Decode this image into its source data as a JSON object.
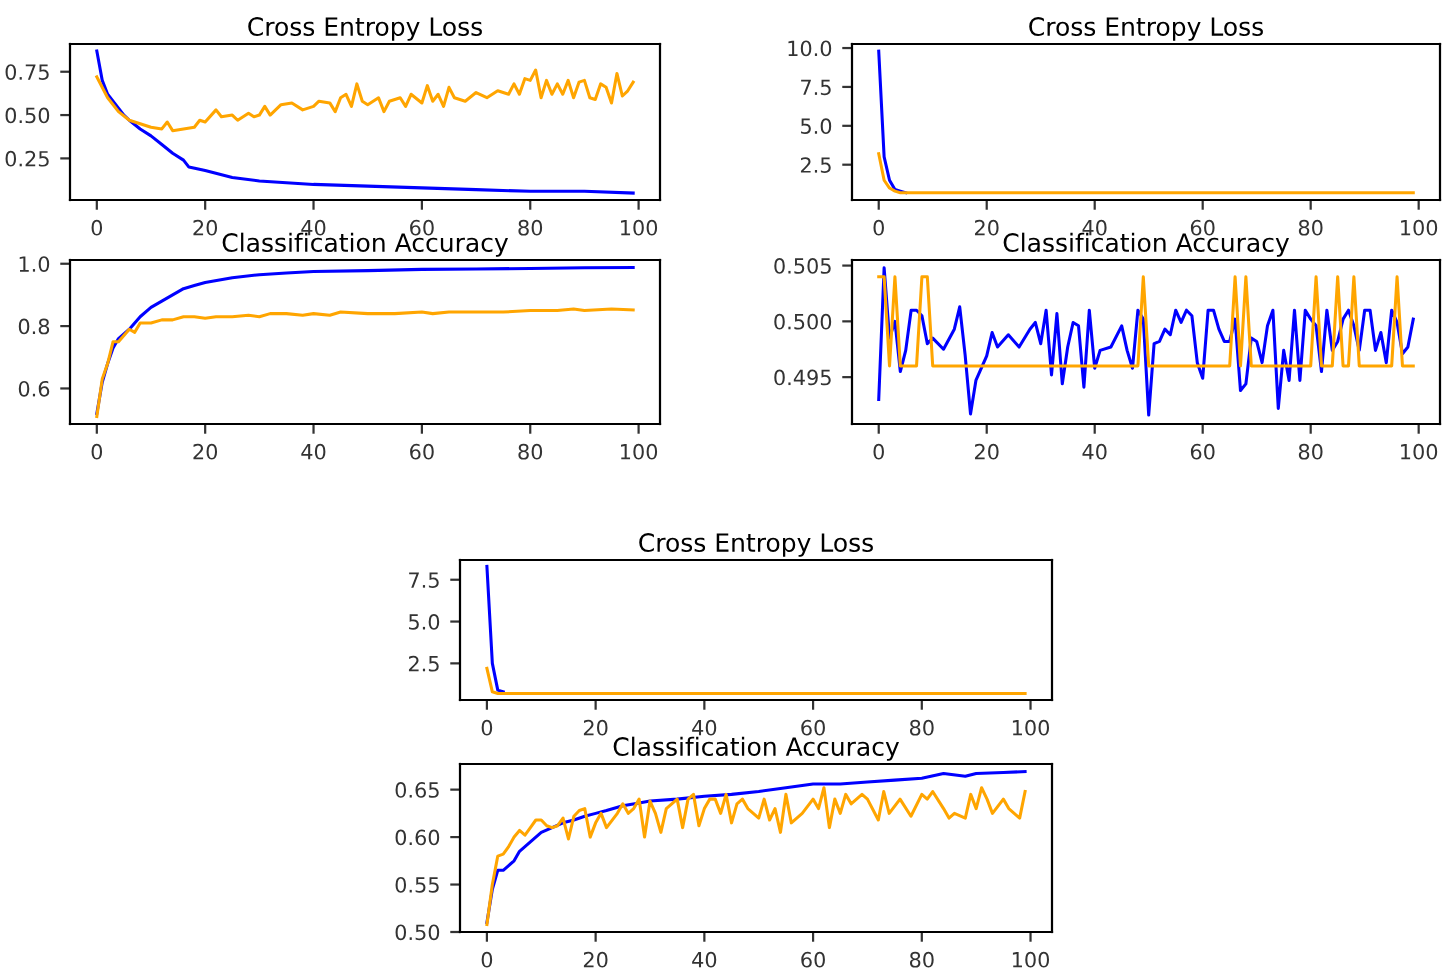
{
  "chart_data": [
    {
      "type": "line",
      "title": "Cross Entropy Loss",
      "xlim": [
        -4.95,
        103.95
      ],
      "xticks": [
        0,
        20,
        40,
        60,
        80,
        100
      ],
      "ylim": [
        0.01,
        0.91
      ],
      "yticks": [
        {
          "value": 0.25,
          "label": "0.25"
        },
        {
          "value": 0.5,
          "label": "0.50"
        },
        {
          "value": 0.75,
          "label": "0.75"
        }
      ],
      "grid": false,
      "series": [
        {
          "color": "#0000ff",
          "x": [
            0,
            1,
            2,
            3,
            4,
            5,
            6,
            8,
            10,
            12,
            14,
            16,
            17,
            20,
            25,
            30,
            35,
            40,
            50,
            60,
            70,
            80,
            90,
            99
          ],
          "values": [
            0.87,
            0.7,
            0.62,
            0.58,
            0.54,
            0.5,
            0.47,
            0.42,
            0.38,
            0.33,
            0.28,
            0.24,
            0.2,
            0.18,
            0.14,
            0.12,
            0.11,
            0.1,
            0.09,
            0.08,
            0.07,
            0.06,
            0.06,
            0.05
          ]
        },
        {
          "color": "#ffa500",
          "x": [
            0,
            2,
            4,
            6,
            8,
            10,
            12,
            13,
            14,
            16,
            18,
            19,
            20,
            22,
            23,
            25,
            26,
            28,
            29,
            30,
            31,
            32,
            34,
            36,
            38,
            40,
            41,
            43,
            44,
            45,
            46,
            47,
            48,
            49,
            50,
            52,
            53,
            54,
            56,
            57,
            58,
            60,
            61,
            62,
            63,
            64,
            65,
            66,
            68,
            70,
            72,
            74,
            76,
            77,
            78,
            79,
            80,
            81,
            82,
            83,
            84,
            85,
            86,
            87,
            88,
            89,
            90,
            91,
            92,
            93,
            94,
            95,
            96,
            97,
            98,
            99
          ],
          "values": [
            0.72,
            0.6,
            0.52,
            0.47,
            0.45,
            0.43,
            0.42,
            0.46,
            0.41,
            0.42,
            0.43,
            0.47,
            0.46,
            0.53,
            0.49,
            0.5,
            0.47,
            0.51,
            0.49,
            0.5,
            0.55,
            0.5,
            0.56,
            0.57,
            0.53,
            0.55,
            0.58,
            0.57,
            0.52,
            0.6,
            0.62,
            0.55,
            0.68,
            0.58,
            0.56,
            0.6,
            0.52,
            0.58,
            0.6,
            0.55,
            0.62,
            0.57,
            0.67,
            0.58,
            0.62,
            0.55,
            0.66,
            0.6,
            0.58,
            0.63,
            0.6,
            0.64,
            0.62,
            0.68,
            0.62,
            0.71,
            0.7,
            0.76,
            0.6,
            0.7,
            0.62,
            0.68,
            0.62,
            0.7,
            0.6,
            0.69,
            0.7,
            0.6,
            0.59,
            0.68,
            0.66,
            0.57,
            0.74,
            0.61,
            0.64,
            0.69
          ]
        }
      ]
    },
    {
      "type": "line",
      "title": "Cross Entropy Loss",
      "xlim": [
        -4.95,
        103.95
      ],
      "xticks": [
        0,
        20,
        40,
        60,
        80,
        100
      ],
      "ylim": [
        0.23,
        10.26
      ],
      "yticks": [
        {
          "value": 2.5,
          "label": "2.5"
        },
        {
          "value": 5,
          "label": "5.0"
        },
        {
          "value": 7.5,
          "label": "7.5"
        },
        {
          "value": 10,
          "label": "10.0"
        }
      ],
      "grid": false,
      "series": [
        {
          "color": "#0000ff",
          "x": [
            0,
            1,
            2,
            3,
            4,
            5
          ],
          "values": [
            9.8,
            3.0,
            1.5,
            0.9,
            0.8,
            0.7
          ]
        },
        {
          "color": "#ffa500",
          "x": [
            0,
            1,
            2,
            3,
            4,
            5,
            10,
            50,
            99
          ],
          "values": [
            3.2,
            1.5,
            1.0,
            0.8,
            0.7,
            0.7,
            0.7,
            0.7,
            0.7
          ]
        }
      ]
    },
    {
      "type": "line",
      "title": "Classification Accuracy",
      "xlim": [
        -4.95,
        103.95
      ],
      "xticks": [
        0,
        20,
        40,
        60,
        80,
        100
      ],
      "ylim": [
        0.486,
        1.012
      ],
      "yticks": [
        {
          "value": 0.6,
          "label": "0.6"
        },
        {
          "value": 0.8,
          "label": "0.8"
        },
        {
          "value": 1.0,
          "label": "1.0"
        }
      ],
      "grid": false,
      "series": [
        {
          "color": "#0000ff",
          "x": [
            0,
            1,
            2,
            3,
            4,
            6,
            8,
            10,
            12,
            14,
            16,
            18,
            20,
            25,
            30,
            35,
            40,
            50,
            60,
            70,
            80,
            90,
            99
          ],
          "values": [
            0.52,
            0.62,
            0.68,
            0.73,
            0.76,
            0.79,
            0.83,
            0.86,
            0.88,
            0.9,
            0.92,
            0.93,
            0.94,
            0.955,
            0.965,
            0.97,
            0.975,
            0.978,
            0.982,
            0.983,
            0.985,
            0.987,
            0.988
          ]
        },
        {
          "color": "#ffa500",
          "x": [
            0,
            1,
            2,
            3,
            4,
            5,
            6,
            7,
            8,
            10,
            12,
            14,
            16,
            18,
            20,
            22,
            25,
            28,
            30,
            32,
            35,
            38,
            40,
            43,
            45,
            50,
            55,
            60,
            62,
            65,
            70,
            75,
            80,
            85,
            88,
            90,
            95,
            99
          ],
          "values": [
            0.51,
            0.63,
            0.68,
            0.75,
            0.75,
            0.77,
            0.79,
            0.78,
            0.81,
            0.81,
            0.82,
            0.82,
            0.83,
            0.83,
            0.825,
            0.83,
            0.83,
            0.835,
            0.83,
            0.84,
            0.84,
            0.835,
            0.84,
            0.835,
            0.845,
            0.84,
            0.84,
            0.845,
            0.84,
            0.845,
            0.845,
            0.845,
            0.85,
            0.85,
            0.855,
            0.85,
            0.855,
            0.852
          ]
        }
      ]
    },
    {
      "type": "line",
      "title": "Classification Accuracy",
      "xlim": [
        -4.95,
        103.95
      ],
      "xticks": [
        0,
        20,
        40,
        60,
        80,
        100
      ],
      "ylim": [
        0.4908,
        0.5055
      ],
      "yticks": [
        {
          "value": 0.495,
          "label": "0.495"
        },
        {
          "value": 0.5,
          "label": "0.500"
        },
        {
          "value": 0.505,
          "label": "0.505"
        }
      ],
      "grid": false,
      "series": [
        {
          "color": "#0000ff",
          "x": [
            0,
            1,
            2,
            3,
            4,
            5,
            6,
            7,
            8,
            9,
            10,
            12,
            14,
            15,
            16,
            17,
            18,
            20,
            21,
            22,
            24,
            26,
            28,
            29,
            30,
            31,
            32,
            33,
            34,
            35,
            36,
            37,
            38,
            39,
            40,
            41,
            43,
            45,
            46,
            47,
            48,
            49,
            50,
            51,
            52,
            53,
            54,
            55,
            56,
            57,
            58,
            59,
            60,
            61,
            62,
            63,
            64,
            65,
            66,
            67,
            68,
            69,
            70,
            71,
            72,
            73,
            74,
            75,
            76,
            77,
            78,
            79,
            80,
            81,
            82,
            83,
            84,
            85,
            86,
            87,
            88,
            89,
            90,
            91,
            92,
            93,
            94,
            95,
            96,
            97,
            98,
            99
          ],
          "values": [
            0.493,
            0.5048,
            0.4985,
            0.5,
            0.4955,
            0.4974,
            0.501,
            0.501,
            0.5005,
            0.498,
            0.4985,
            0.4975,
            0.4993,
            0.5013,
            0.497,
            0.4917,
            0.4947,
            0.4969,
            0.499,
            0.4977,
            0.4988,
            0.4977,
            0.4993,
            0.4999,
            0.498,
            0.501,
            0.4952,
            0.5007,
            0.4944,
            0.4977,
            0.4999,
            0.4996,
            0.4941,
            0.501,
            0.4958,
            0.4974,
            0.4977,
            0.4996,
            0.4974,
            0.4958,
            0.501,
            0.5002,
            0.4916,
            0.498,
            0.4982,
            0.4993,
            0.4988,
            0.501,
            0.4999,
            0.501,
            0.5005,
            0.4963,
            0.4949,
            0.501,
            0.501,
            0.4993,
            0.4982,
            0.4982,
            0.5002,
            0.4938,
            0.4944,
            0.4985,
            0.4982,
            0.4963,
            0.4996,
            0.501,
            0.4922,
            0.4974,
            0.4947,
            0.501,
            0.4947,
            0.501,
            0.5002,
            0.4996,
            0.4955,
            0.501,
            0.4974,
            0.4982,
            0.5002,
            0.501,
            0.4996,
            0.4974,
            0.501,
            0.501,
            0.4974,
            0.499,
            0.4963,
            0.501,
            0.4999,
            0.4971,
            0.4977,
            0.5002
          ]
        },
        {
          "color": "#ffa500",
          "x": [
            0,
            1,
            2,
            3,
            4,
            7,
            8,
            9,
            10,
            48,
            49,
            50,
            65,
            66,
            67,
            68,
            69,
            80,
            81,
            82,
            84,
            85,
            86,
            87,
            88,
            89,
            95,
            96,
            97,
            99
          ],
          "values": [
            0.504,
            0.504,
            0.496,
            0.504,
            0.496,
            0.496,
            0.504,
            0.504,
            0.496,
            0.496,
            0.504,
            0.496,
            0.496,
            0.504,
            0.496,
            0.504,
            0.496,
            0.496,
            0.504,
            0.496,
            0.496,
            0.504,
            0.496,
            0.496,
            0.504,
            0.496,
            0.496,
            0.504,
            0.496,
            0.496
          ]
        }
      ]
    },
    {
      "type": "line",
      "title": "Cross Entropy Loss",
      "xlim": [
        -4.95,
        103.95
      ],
      "xticks": [
        0,
        20,
        40,
        60,
        80,
        100
      ],
      "ylim": [
        0.31,
        8.68
      ],
      "yticks": [
        {
          "value": 2.5,
          "label": "2.5"
        },
        {
          "value": 5,
          "label": "5.0"
        },
        {
          "value": 7.5,
          "label": "7.5"
        }
      ],
      "grid": false,
      "series": [
        {
          "color": "#0000ff",
          "x": [
            0,
            1,
            2,
            3
          ],
          "values": [
            8.3,
            2.5,
            0.9,
            0.8
          ]
        },
        {
          "color": "#ffa500",
          "x": [
            0,
            1,
            2,
            20,
            50,
            99
          ],
          "values": [
            2.2,
            0.8,
            0.7,
            0.7,
            0.7,
            0.7
          ]
        }
      ]
    },
    {
      "type": "line",
      "title": "Classification Accuracy",
      "xlim": [
        -4.95,
        103.95
      ],
      "xticks": [
        0,
        20,
        40,
        60,
        80,
        100
      ],
      "ylim": [
        0.5,
        0.677
      ],
      "yticks": [
        {
          "value": 0.5,
          "label": "0.50"
        },
        {
          "value": 0.55,
          "label": "0.55"
        },
        {
          "value": 0.6,
          "label": "0.60"
        },
        {
          "value": 0.65,
          "label": "0.65"
        }
      ],
      "grid": false,
      "series": [
        {
          "color": "#0000ff",
          "x": [
            0,
            1,
            2,
            3,
            4,
            5,
            6,
            8,
            10,
            12,
            14,
            16,
            18,
            20,
            22,
            25,
            28,
            30,
            35,
            40,
            45,
            50,
            55,
            60,
            65,
            70,
            75,
            80,
            84,
            88,
            90,
            95,
            99
          ],
          "values": [
            0.51,
            0.545,
            0.565,
            0.565,
            0.57,
            0.575,
            0.585,
            0.595,
            0.605,
            0.61,
            0.615,
            0.618,
            0.622,
            0.625,
            0.628,
            0.633,
            0.636,
            0.638,
            0.64,
            0.643,
            0.645,
            0.648,
            0.652,
            0.656,
            0.656,
            0.658,
            0.66,
            0.662,
            0.667,
            0.664,
            0.667,
            0.668,
            0.669
          ]
        },
        {
          "color": "#ffa500",
          "x": [
            0,
            1,
            2,
            3,
            4,
            5,
            6,
            7,
            8,
            9,
            10,
            11,
            12,
            13,
            14,
            15,
            16,
            17,
            18,
            19,
            20,
            21,
            22,
            24,
            25,
            26,
            27,
            28,
            29,
            30,
            31,
            32,
            33,
            35,
            36,
            37,
            38,
            39,
            40,
            41,
            42,
            43,
            44,
            45,
            46,
            47,
            48,
            50,
            51,
            52,
            53,
            54,
            55,
            56,
            58,
            60,
            61,
            62,
            63,
            64,
            65,
            66,
            67,
            69,
            70,
            72,
            73,
            74,
            76,
            78,
            80,
            81,
            82,
            84,
            85,
            86,
            88,
            89,
            90,
            91,
            92,
            93,
            95,
            96,
            98,
            99
          ],
          "values": [
            0.508,
            0.55,
            0.58,
            0.582,
            0.59,
            0.6,
            0.607,
            0.602,
            0.61,
            0.618,
            0.618,
            0.612,
            0.61,
            0.612,
            0.62,
            0.598,
            0.622,
            0.628,
            0.63,
            0.6,
            0.615,
            0.625,
            0.61,
            0.625,
            0.635,
            0.625,
            0.63,
            0.64,
            0.6,
            0.638,
            0.625,
            0.605,
            0.63,
            0.64,
            0.61,
            0.64,
            0.645,
            0.612,
            0.63,
            0.64,
            0.64,
            0.625,
            0.645,
            0.615,
            0.635,
            0.64,
            0.63,
            0.62,
            0.64,
            0.618,
            0.63,
            0.605,
            0.645,
            0.615,
            0.625,
            0.64,
            0.63,
            0.652,
            0.61,
            0.64,
            0.625,
            0.645,
            0.635,
            0.645,
            0.64,
            0.618,
            0.648,
            0.625,
            0.64,
            0.622,
            0.645,
            0.64,
            0.648,
            0.63,
            0.62,
            0.625,
            0.62,
            0.645,
            0.63,
            0.652,
            0.64,
            0.625,
            0.64,
            0.63,
            0.62,
            0.648
          ]
        }
      ]
    }
  ]
}
